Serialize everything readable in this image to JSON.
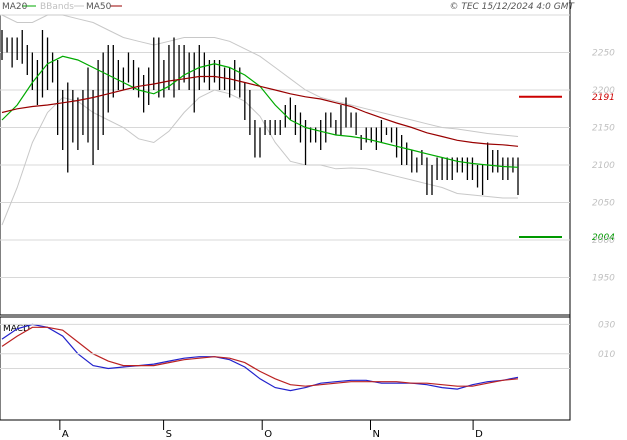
{
  "header": {
    "legend": [
      {
        "label": "MA20",
        "color": "#00aa00"
      },
      {
        "label": "BBands",
        "color": "#c8c8c8"
      },
      {
        "label": "MA50",
        "color": "#990000"
      }
    ],
    "copyright": "© TEC 15/12/2024 4:0 GMT"
  },
  "chart_data": [
    {
      "type": "line",
      "panel": "price",
      "title": "",
      "xlabel": "",
      "ylabel": "",
      "ylim": [
        1900,
        2300
      ],
      "y_ticks": [
        "2250",
        "2200",
        "2150",
        "2100",
        "2050",
        "2000",
        "1950"
      ],
      "x_ticks": [
        "A",
        "S",
        "O",
        "N",
        "D"
      ],
      "grid": true,
      "legend_position": "top-left",
      "price_bars": [
        {
          "low": 2240,
          "high": 2280
        },
        {
          "low": 2250,
          "high": 2270
        },
        {
          "low": 2230,
          "high": 2270
        },
        {
          "low": 2240,
          "high": 2270
        },
        {
          "low": 2235,
          "high": 2280
        },
        {
          "low": 2220,
          "high": 2260
        },
        {
          "low": 2200,
          "high": 2250
        },
        {
          "low": 2180,
          "high": 2240
        },
        {
          "low": 2190,
          "high": 2280
        },
        {
          "low": 2200,
          "high": 2270
        },
        {
          "low": 2210,
          "high": 2250
        },
        {
          "low": 2140,
          "high": 2240
        },
        {
          "low": 2120,
          "high": 2200
        },
        {
          "low": 2090,
          "high": 2210
        },
        {
          "low": 2130,
          "high": 2200
        },
        {
          "low": 2120,
          "high": 2190
        },
        {
          "low": 2140,
          "high": 2200
        },
        {
          "low": 2130,
          "high": 2230
        },
        {
          "low": 2100,
          "high": 2200
        },
        {
          "low": 2120,
          "high": 2240
        },
        {
          "low": 2140,
          "high": 2250
        },
        {
          "low": 2170,
          "high": 2260
        },
        {
          "low": 2190,
          "high": 2260
        },
        {
          "low": 2200,
          "high": 2240
        },
        {
          "low": 2200,
          "high": 2230
        },
        {
          "low": 2210,
          "high": 2250
        },
        {
          "low": 2200,
          "high": 2240
        },
        {
          "low": 2190,
          "high": 2230
        },
        {
          "low": 2170,
          "high": 2220
        },
        {
          "low": 2180,
          "high": 2230
        },
        {
          "low": 2200,
          "high": 2270
        },
        {
          "low": 2190,
          "high": 2270
        },
        {
          "low": 2190,
          "high": 2240
        },
        {
          "low": 2200,
          "high": 2260
        },
        {
          "low": 2190,
          "high": 2270
        },
        {
          "low": 2200,
          "high": 2260
        },
        {
          "low": 2210,
          "high": 2260
        },
        {
          "low": 2200,
          "high": 2250
        },
        {
          "low": 2170,
          "high": 2250
        },
        {
          "low": 2200,
          "high": 2260
        },
        {
          "low": 2210,
          "high": 2250
        },
        {
          "low": 2200,
          "high": 2240
        },
        {
          "low": 2210,
          "high": 2240
        },
        {
          "low": 2200,
          "high": 2240
        },
        {
          "low": 2200,
          "high": 2230
        },
        {
          "low": 2190,
          "high": 2230
        },
        {
          "low": 2200,
          "high": 2240
        },
        {
          "low": 2190,
          "high": 2230
        },
        {
          "low": 2160,
          "high": 2210
        },
        {
          "low": 2140,
          "high": 2200
        },
        {
          "low": 2110,
          "high": 2160
        },
        {
          "low": 2110,
          "high": 2150
        },
        {
          "low": 2140,
          "high": 2160
        },
        {
          "low": 2140,
          "high": 2160
        },
        {
          "low": 2140,
          "high": 2160
        },
        {
          "low": 2140,
          "high": 2160
        },
        {
          "low": 2150,
          "high": 2180
        },
        {
          "low": 2160,
          "high": 2190
        },
        {
          "low": 2140,
          "high": 2180
        },
        {
          "low": 2130,
          "high": 2170
        },
        {
          "low": 2100,
          "high": 2160
        },
        {
          "low": 2130,
          "high": 2150
        },
        {
          "low": 2130,
          "high": 2150
        },
        {
          "low": 2120,
          "high": 2160
        },
        {
          "low": 2130,
          "high": 2170
        },
        {
          "low": 2150,
          "high": 2170
        },
        {
          "low": 2140,
          "high": 2160
        },
        {
          "low": 2140,
          "high": 2180
        },
        {
          "low": 2150,
          "high": 2190
        },
        {
          "low": 2150,
          "high": 2170
        },
        {
          "low": 2140,
          "high": 2170
        },
        {
          "low": 2120,
          "high": 2140
        },
        {
          "low": 2130,
          "high": 2150
        },
        {
          "low": 2130,
          "high": 2150
        },
        {
          "low": 2120,
          "high": 2150
        },
        {
          "low": 2130,
          "high": 2160
        },
        {
          "low": 2140,
          "high": 2150
        },
        {
          "low": 2130,
          "high": 2150
        },
        {
          "low": 2110,
          "high": 2150
        },
        {
          "low": 2100,
          "high": 2140
        },
        {
          "low": 2100,
          "high": 2130
        },
        {
          "low": 2090,
          "high": 2120
        },
        {
          "low": 2090,
          "high": 2110
        },
        {
          "low": 2100,
          "high": 2120
        },
        {
          "low": 2060,
          "high": 2110
        },
        {
          "low": 2060,
          "high": 2100
        },
        {
          "low": 2080,
          "high": 2110
        },
        {
          "low": 2080,
          "high": 2110
        },
        {
          "low": 2080,
          "high": 2110
        },
        {
          "low": 2080,
          "high": 2110
        },
        {
          "low": 2090,
          "high": 2110
        },
        {
          "low": 2090,
          "high": 2110
        },
        {
          "low": 2080,
          "high": 2110
        },
        {
          "low": 2080,
          "high": 2110
        },
        {
          "low": 2070,
          "high": 2100
        },
        {
          "low": 2060,
          "high": 2100
        },
        {
          "low": 2080,
          "high": 2130
        },
        {
          "low": 2090,
          "high": 2120
        },
        {
          "low": 2090,
          "high": 2120
        },
        {
          "low": 2080,
          "high": 2110
        },
        {
          "low": 2080,
          "high": 2110
        },
        {
          "low": 2090,
          "high": 2110
        },
        {
          "low": 2060,
          "high": 2110
        }
      ],
      "series": [
        {
          "name": "MA20",
          "color": "#00aa00",
          "values": [
            2160,
            2180,
            2210,
            2235,
            2245,
            2240,
            2230,
            2220,
            2210,
            2200,
            2195,
            2205,
            2220,
            2230,
            2235,
            2230,
            2220,
            2205,
            2180,
            2160,
            2150,
            2145,
            2140,
            2138,
            2135,
            2130,
            2125,
            2120,
            2115,
            2110,
            2105,
            2102,
            2100,
            2098,
            2097
          ]
        },
        {
          "name": "MA50",
          "color": "#990000",
          "values": [
            2170,
            2175,
            2178,
            2180,
            2183,
            2186,
            2190,
            2195,
            2200,
            2205,
            2208,
            2212,
            2215,
            2218,
            2218,
            2215,
            2210,
            2205,
            2200,
            2195,
            2191,
            2188,
            2183,
            2178,
            2170,
            2163,
            2156,
            2150,
            2143,
            2138,
            2133,
            2130,
            2128,
            2127,
            2125
          ]
        },
        {
          "name": "BBands",
          "color": "#c8c8c8",
          "values": [
            2300,
            2290,
            2290,
            2300,
            2300,
            2295,
            2290,
            2280,
            2270,
            2265,
            2260,
            2265,
            2270,
            2270,
            2270,
            2265,
            2255,
            2245,
            2230,
            2215,
            2200,
            2190,
            2185,
            2180,
            2175,
            2170,
            2165,
            2160,
            2155,
            2150,
            2148,
            2145,
            2142,
            2140,
            2138
          ]
        },
        {
          "name": "BBands",
          "color": "#c8c8c8",
          "values": [
            2020,
            2070,
            2130,
            2170,
            2190,
            2185,
            2170,
            2160,
            2150,
            2135,
            2130,
            2145,
            2170,
            2190,
            2200,
            2195,
            2185,
            2165,
            2130,
            2105,
            2100,
            2100,
            2095,
            2096,
            2095,
            2090,
            2085,
            2080,
            2075,
            2070,
            2062,
            2060,
            2058,
            2056,
            2056
          ]
        }
      ],
      "levels": [
        {
          "label": "2191",
          "value": 2191,
          "color": "#cc0000"
        },
        {
          "label": "2004",
          "value": 2004,
          "color": "#009900"
        }
      ]
    },
    {
      "type": "line",
      "panel": "macd",
      "title": "MACD",
      "ylim": [
        -35,
        35
      ],
      "y_ticks": [
        "030",
        "010"
      ],
      "series": [
        {
          "name": "MACD",
          "color": "#2222cc",
          "values": [
            20,
            27,
            30,
            28,
            22,
            10,
            2,
            0,
            1,
            2,
            3,
            5,
            7,
            8,
            8,
            6,
            1,
            -7,
            -13,
            -15,
            -13,
            -10,
            -9,
            -8,
            -8,
            -10,
            -10,
            -10,
            -11,
            -13,
            -14,
            -11,
            -9,
            -8,
            -6
          ]
        },
        {
          "name": "Signal",
          "color": "#bb2222",
          "values": [
            15,
            22,
            28,
            28,
            26,
            18,
            10,
            5,
            2,
            2,
            2,
            4,
            6,
            7,
            8,
            7,
            4,
            -2,
            -7,
            -11,
            -12,
            -11,
            -10,
            -9,
            -9,
            -9,
            -9,
            -10,
            -10,
            -11,
            -12,
            -12,
            -10,
            -8,
            -7
          ]
        }
      ]
    }
  ]
}
